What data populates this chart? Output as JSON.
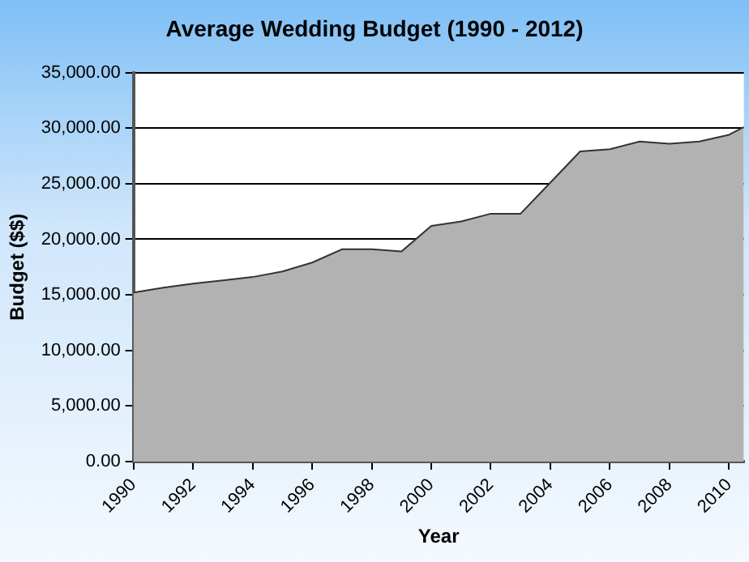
{
  "chart_data": {
    "type": "area",
    "title": "Average Wedding Budget (1990 - 2012)",
    "xlabel": "Year",
    "ylabel": "Budget ($$)",
    "x": [
      1990,
      1991,
      1992,
      1993,
      1994,
      1995,
      1996,
      1997,
      1998,
      1999,
      2000,
      2001,
      2002,
      2003,
      2004,
      2005,
      2006,
      2007,
      2008,
      2009,
      2010,
      2010.5
    ],
    "series": [
      {
        "color": "#b2b2b2",
        "values": [
          15200,
          15650,
          16000,
          16300,
          16600,
          17100,
          17900,
          19100,
          19100,
          18900,
          21200,
          21600,
          22300,
          22300,
          25100,
          27900,
          28100,
          28800,
          28600,
          28800,
          29400,
          30100
        ]
      }
    ],
    "xlim": [
      1990,
      2010.5
    ],
    "xticks": [
      1990,
      1992,
      1994,
      1996,
      1998,
      2000,
      2002,
      2004,
      2006,
      2008,
      2010
    ],
    "ylim": [
      0,
      35000
    ],
    "yticks": [
      {
        "value": 0,
        "label": "0.00"
      },
      {
        "value": 5000,
        "label": "5,000.00"
      },
      {
        "value": 10000,
        "label": "10,000.00"
      },
      {
        "value": 15000,
        "label": "15,000.00"
      },
      {
        "value": 20000,
        "label": "20,000.00"
      },
      {
        "value": 25000,
        "label": "25,000.00"
      },
      {
        "value": 30000,
        "label": "30,000.00"
      },
      {
        "value": 35000,
        "label": "35,000.00"
      }
    ],
    "grid": "y",
    "legend": false
  }
}
